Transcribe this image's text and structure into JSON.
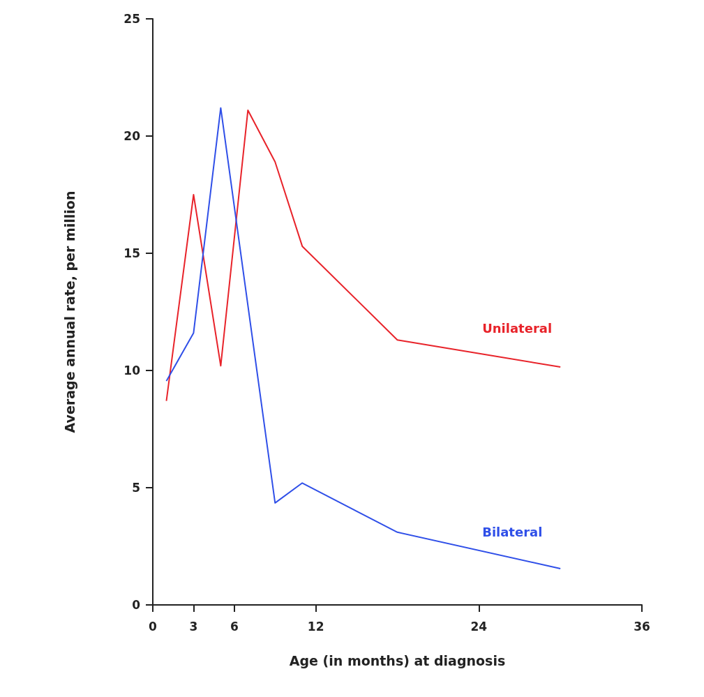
{
  "chart_data": {
    "type": "line",
    "xlabel": "Age (in months) at diagnosis",
    "ylabel": "Average annual rate, per million",
    "xlim": [
      0,
      36
    ],
    "xticks": [
      0,
      3,
      6,
      12,
      24,
      36
    ],
    "ylim": [
      0,
      25
    ],
    "yticks": [
      0,
      5,
      10,
      15,
      20,
      25
    ],
    "x": [
      1,
      3,
      5,
      7,
      9,
      11,
      18,
      30
    ],
    "series": [
      {
        "name": "Unilateral",
        "color": "#e8232a",
        "values": [
          8.7,
          17.5,
          10.2,
          21.1,
          18.9,
          15.3,
          11.3,
          10.15
        ]
      },
      {
        "name": "Bilateral",
        "color": "#2f4fe8",
        "x": [
          1,
          3,
          5,
          9,
          11,
          18,
          30
        ],
        "values": [
          9.55,
          11.6,
          21.2,
          4.35,
          5.2,
          3.1,
          1.55
        ]
      }
    ],
    "grid": false,
    "legend": false,
    "marker": "none",
    "line_style": "solid"
  }
}
